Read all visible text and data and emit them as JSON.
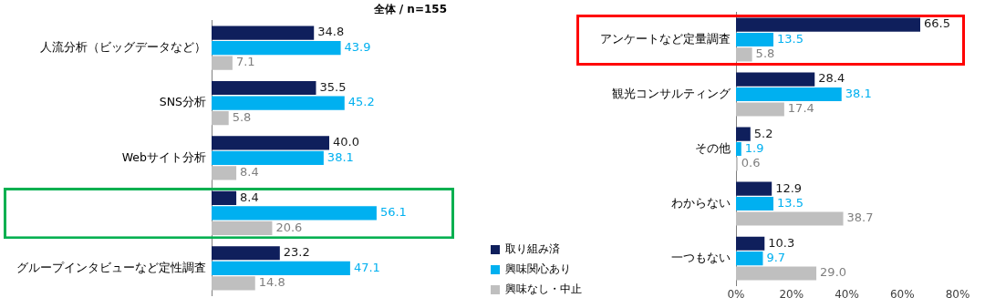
{
  "chart_data": [
    {
      "type": "bar",
      "orientation": "horizontal",
      "title": "全体 / n=155",
      "tick_labels": "y",
      "categories": [
        "人流分析（ビッグデータなど）",
        "SNS分析",
        "Webサイト分析",
        null,
        "グループインタビューなど定性調査"
      ],
      "series": [
        {
          "color": "#0f1f5c",
          "values": [
            34.8,
            35.5,
            40.0,
            8.4,
            23.2
          ],
          "value_labels": [
            "34.8",
            "35.5",
            "40.0",
            "8.4",
            "23.2"
          ]
        },
        {
          "color": "#00b0f0",
          "values": [
            43.9,
            45.2,
            38.1,
            56.1,
            47.1
          ],
          "value_labels": [
            "43.9",
            "45.2",
            "38.1",
            "56.1",
            "47.1"
          ]
        },
        {
          "color": "#bfbfbf",
          "values": [
            7.1,
            5.8,
            8.4,
            20.6,
            14.8
          ],
          "value_labels": [
            "7.1",
            "5.8",
            "8.4",
            "20.6",
            "14.8"
          ]
        }
      ]
    },
    {
      "type": "bar",
      "orientation": "horizontal",
      "legend": "left bottom",
      "categories": [
        "アンケートなど定量調査",
        "観光コンサルティング",
        "その他",
        "わからない",
        "一つもない"
      ],
      "xlim": [
        0,
        80
      ],
      "xticks": [
        {
          "value": 0,
          "label": "0%"
        },
        {
          "value": 20,
          "label": "20%"
        },
        {
          "value": 40,
          "label": "40%"
        },
        {
          "value": 60,
          "label": "60%"
        },
        {
          "value": 80,
          "label": "80%"
        }
      ],
      "series": [
        {
          "name": "取り組み済",
          "color": "#0f1f5c",
          "values": [
            66.5,
            28.4,
            5.2,
            12.9,
            10.3
          ],
          "value_labels": [
            "66.5",
            "28.4",
            "5.2",
            "12.9",
            "10.3"
          ]
        },
        {
          "name": "興味関心あり",
          "color": "#00b0f0",
          "values": [
            13.5,
            38.1,
            1.9,
            13.5,
            9.7
          ],
          "value_labels": [
            "13.5",
            "38.1",
            "1.9",
            "13.5",
            "9.7"
          ]
        },
        {
          "name": "興味なし・中止",
          "color": "#bfbfbf",
          "values": [
            5.8,
            17.4,
            0.6,
            38.7,
            29.0
          ],
          "value_labels": [
            "5.8",
            "17.4",
            "0.6",
            "38.7",
            "29.0"
          ]
        }
      ]
    }
  ]
}
